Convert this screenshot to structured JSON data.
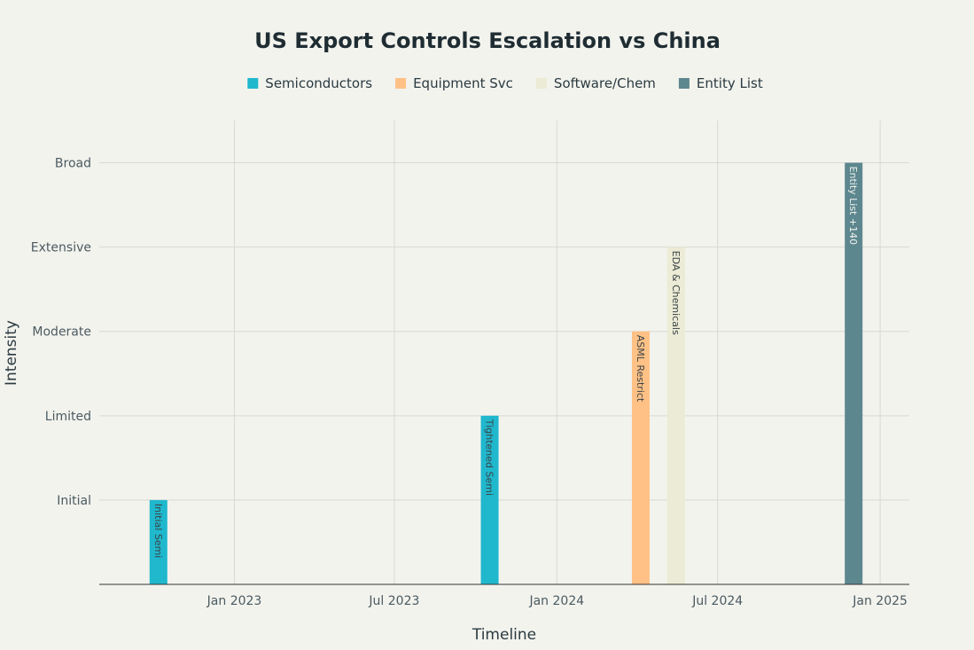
{
  "chart_data": {
    "type": "bar",
    "title": "US Export Controls Escalation vs China",
    "xlabel": "Timeline",
    "ylabel": "Intensity",
    "y_categories": [
      "Initial",
      "Limited",
      "Moderate",
      "Extensive",
      "Broad"
    ],
    "ylim": [
      0,
      5
    ],
    "x_ticks": [
      {
        "label": "Jan 2023",
        "date": "2023-01-01"
      },
      {
        "label": "Jul 2023",
        "date": "2023-07-01"
      },
      {
        "label": "Jan 2024",
        "date": "2024-01-01"
      },
      {
        "label": "Jul 2024",
        "date": "2024-07-01"
      },
      {
        "label": "Jan 2025",
        "date": "2025-01-01"
      }
    ],
    "xlim": [
      "2022-08-01",
      "2025-02-03"
    ],
    "grid": true,
    "legend_position": "top",
    "series": [
      {
        "name": "Semiconductors",
        "color": "#1fb8cd",
        "label_color": "dark",
        "points": [
          {
            "date": "2022-10-07",
            "value": 1,
            "label": "Initial Semi"
          },
          {
            "date": "2023-10-17",
            "value": 2,
            "label": "Tightened Semi"
          }
        ]
      },
      {
        "name": "Equipment Svc",
        "color": "#ffc185",
        "label_color": "dark",
        "points": [
          {
            "date": "2024-04-05",
            "value": 3,
            "label": "ASML Restrict"
          }
        ]
      },
      {
        "name": "Software/Chem",
        "color": "#ecebd5",
        "label_color": "dark",
        "points": [
          {
            "date": "2024-05-15",
            "value": 4,
            "label": "EDA & Chemicals"
          }
        ]
      },
      {
        "name": "Entity List",
        "color": "#5d878f",
        "label_color": "light",
        "points": [
          {
            "date": "2024-12-02",
            "value": 5,
            "label": "Entity List +140"
          }
        ]
      }
    ]
  }
}
